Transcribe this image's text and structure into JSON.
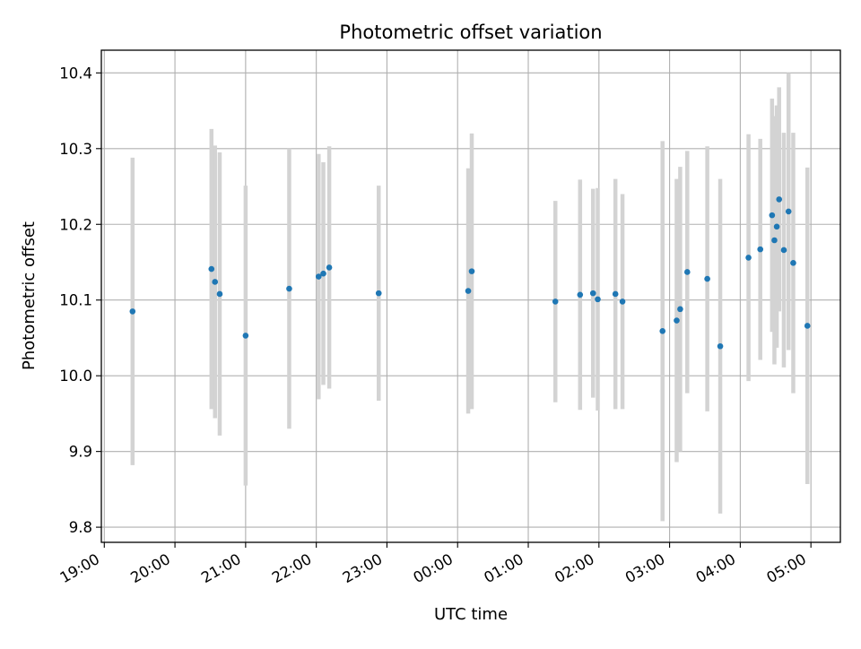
{
  "chart_data": {
    "type": "scatter",
    "title": "Photometric offset variation",
    "xlabel": "UTC time",
    "ylabel": "Photometric offset",
    "x_axis": "time",
    "xlim": [
      "19:00",
      "05:25"
    ],
    "ylim": [
      9.78,
      10.43
    ],
    "grid": true,
    "x_ticks": [
      "19:00",
      "20:00",
      "21:00",
      "22:00",
      "23:00",
      "00:00",
      "01:00",
      "02:00",
      "03:00",
      "04:00",
      "05:00"
    ],
    "y_ticks": [
      "9.8",
      "9.9",
      "10.0",
      "10.1",
      "10.2",
      "10.3",
      "10.4"
    ],
    "colors": {
      "marker": "#1f77b4",
      "errorbar": "#d3d3d3",
      "grid": "#b0b0b0"
    },
    "points": [
      {
        "x": "19:24",
        "y": 10.085,
        "err": 0.203
      },
      {
        "x": "20:31",
        "y": 10.141,
        "err": 0.185
      },
      {
        "x": "20:34",
        "y": 10.124,
        "err": 0.18
      },
      {
        "x": "20:38",
        "y": 10.108,
        "err": 0.187
      },
      {
        "x": "21:00",
        "y": 10.053,
        "err": 0.198
      },
      {
        "x": "21:37",
        "y": 10.115,
        "err": 0.185
      },
      {
        "x": "22:02",
        "y": 10.131,
        "err": 0.162
      },
      {
        "x": "22:06",
        "y": 10.135,
        "err": 0.147
      },
      {
        "x": "22:11",
        "y": 10.143,
        "err": 0.16
      },
      {
        "x": "22:53",
        "y": 10.109,
        "err": 0.142
      },
      {
        "x": "00:09",
        "y": 10.112,
        "err": 0.162
      },
      {
        "x": "00:12",
        "y": 10.138,
        "err": 0.182
      },
      {
        "x": "01:23",
        "y": 10.098,
        "err": 0.133
      },
      {
        "x": "01:44",
        "y": 10.107,
        "err": 0.152
      },
      {
        "x": "01:55",
        "y": 10.109,
        "err": 0.138
      },
      {
        "x": "01:59",
        "y": 10.101,
        "err": 0.147
      },
      {
        "x": "02:14",
        "y": 10.108,
        "err": 0.152
      },
      {
        "x": "02:20",
        "y": 10.098,
        "err": 0.142
      },
      {
        "x": "02:54",
        "y": 10.059,
        "err": 0.251
      },
      {
        "x": "03:06",
        "y": 10.073,
        "err": 0.187
      },
      {
        "x": "03:09",
        "y": 10.088,
        "err": 0.188
      },
      {
        "x": "03:15",
        "y": 10.137,
        "err": 0.16
      },
      {
        "x": "03:32",
        "y": 10.128,
        "err": 0.175
      },
      {
        "x": "03:43",
        "y": 10.039,
        "err": 0.221
      },
      {
        "x": "04:07",
        "y": 10.156,
        "err": 0.163
      },
      {
        "x": "04:17",
        "y": 10.167,
        "err": 0.146
      },
      {
        "x": "04:27",
        "y": 10.212,
        "err": 0.154
      },
      {
        "x": "04:29",
        "y": 10.179,
        "err": 0.164
      },
      {
        "x": "04:31",
        "y": 10.197,
        "err": 0.16
      },
      {
        "x": "04:33",
        "y": 10.233,
        "err": 0.148
      },
      {
        "x": "04:37",
        "y": 10.166,
        "err": 0.155
      },
      {
        "x": "04:41",
        "y": 10.217,
        "err": 0.183
      },
      {
        "x": "04:45",
        "y": 10.149,
        "err": 0.172
      },
      {
        "x": "04:57",
        "y": 10.066,
        "err": 0.209
      }
    ]
  }
}
